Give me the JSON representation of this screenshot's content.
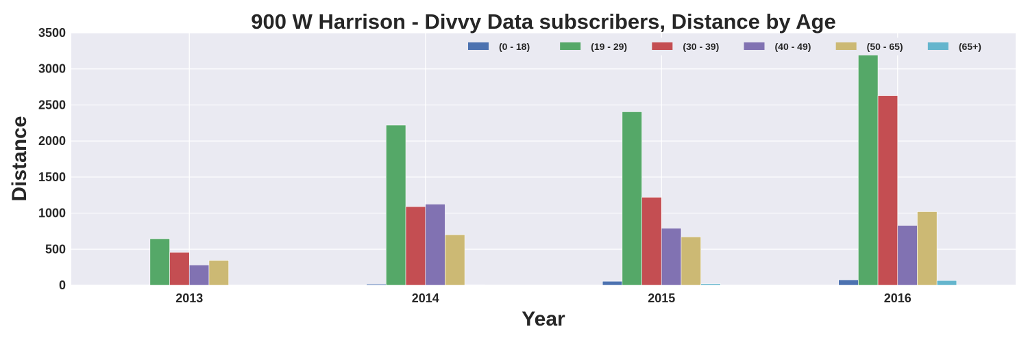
{
  "chart_data": {
    "type": "bar",
    "title": "900 W Harrison - Divvy Data subscribers, Distance by Age",
    "xlabel": "Year",
    "ylabel": "Distance",
    "categories": [
      "2013",
      "2014",
      "2015",
      "2016"
    ],
    "ylim": [
      0,
      3500
    ],
    "yticks": [
      0,
      500,
      1000,
      1500,
      2000,
      2500,
      3000,
      3500
    ],
    "grid": true,
    "legend_position": "top-right",
    "series": [
      {
        "name": "(0 - 18)",
        "color": "#4c72b0",
        "values": [
          5,
          15,
          55,
          75
        ]
      },
      {
        "name": "(19 - 29)",
        "color": "#55a868",
        "values": [
          645,
          2220,
          2405,
          3190
        ]
      },
      {
        "name": "(30 - 39)",
        "color": "#c44e52",
        "values": [
          455,
          1090,
          1220,
          2630
        ]
      },
      {
        "name": "(40 - 49)",
        "color": "#8172b2",
        "values": [
          280,
          1125,
          790,
          830
        ]
      },
      {
        "name": "(50 - 65)",
        "color": "#ccb974",
        "values": [
          345,
          700,
          670,
          1020
        ]
      },
      {
        "name": "(65+)",
        "color": "#64b5cd",
        "values": [
          0,
          5,
          20,
          65
        ]
      }
    ]
  }
}
